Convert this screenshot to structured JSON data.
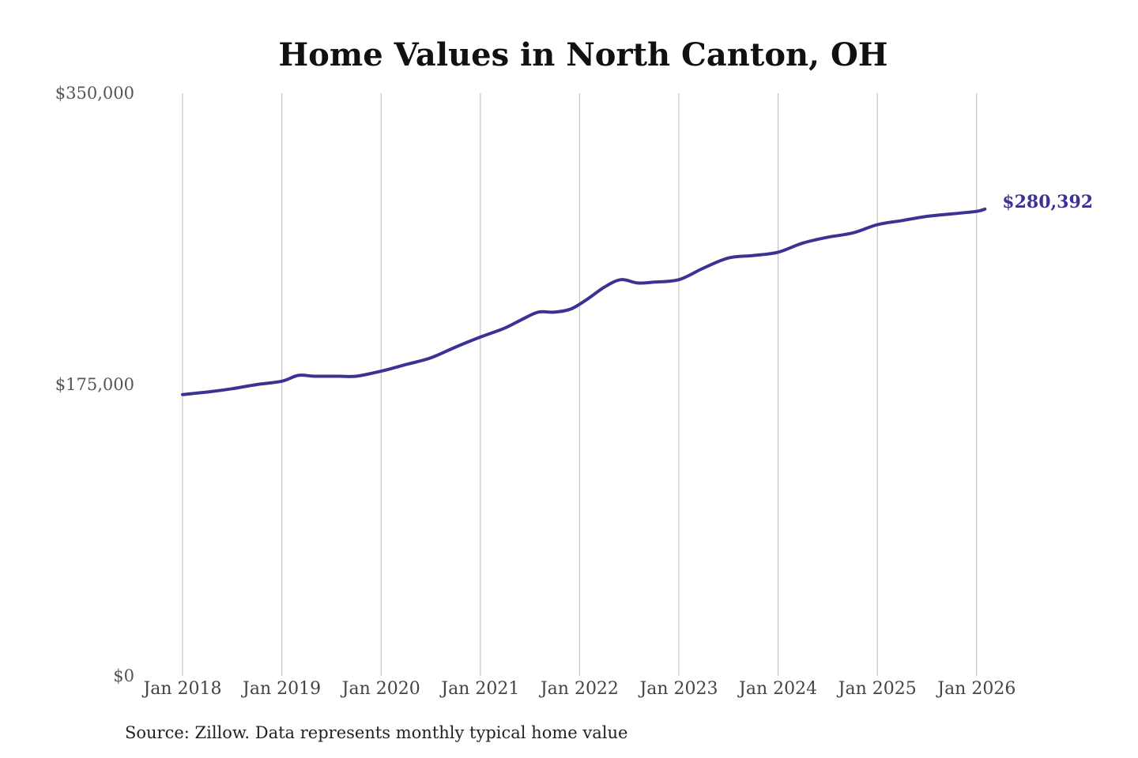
{
  "source": "Source: Zillow. Data represents monthly typical home value",
  "colors": {
    "line": "#3a3394",
    "grid": "#c4c4c4"
  },
  "chart_data": {
    "type": "line",
    "title": "Home Values in North Canton, OH",
    "xlabel": "",
    "ylabel": "",
    "ylim": [
      0,
      350000
    ],
    "y_ticks": [
      0,
      175000,
      350000
    ],
    "y_tick_labels": [
      "$0",
      "$175,000",
      "$350,000"
    ],
    "x_ticks": [
      2018,
      2019,
      2020,
      2021,
      2022,
      2023,
      2024,
      2025,
      2026
    ],
    "x_tick_labels": [
      "Jan 2018",
      "Jan 2019",
      "Jan 2020",
      "Jan 2021",
      "Jan 2022",
      "Jan 2023",
      "Jan 2024",
      "Jan 2025",
      "Jan 2026"
    ],
    "grid": "vertical gridlines at each x tick",
    "legend": "none",
    "end_label": "$280,392",
    "series": [
      {
        "x": [
          "2018-01",
          "2018-04",
          "2018-07",
          "2018-10",
          "2019-01",
          "2019-03",
          "2019-05",
          "2019-08",
          "2019-10",
          "2020-01",
          "2020-04",
          "2020-07",
          "2020-10",
          "2021-01",
          "2021-04",
          "2021-06",
          "2021-08",
          "2021-10",
          "2021-12",
          "2022-02",
          "2022-04",
          "2022-06",
          "2022-08",
          "2022-10",
          "2023-01",
          "2023-04",
          "2023-07",
          "2023-10",
          "2024-01",
          "2024-04",
          "2024-07",
          "2024-10",
          "2025-01",
          "2025-04",
          "2025-07",
          "2025-10",
          "2026-01",
          "2026-02"
        ],
        "values": [
          169000,
          170500,
          172500,
          175000,
          177000,
          180500,
          180000,
          180000,
          180000,
          183000,
          187000,
          191000,
          197500,
          203500,
          209000,
          214000,
          218500,
          218500,
          220500,
          226500,
          233500,
          238000,
          236000,
          236500,
          238000,
          245000,
          251000,
          252500,
          254500,
          260000,
          263500,
          266000,
          271000,
          273500,
          276000,
          277500,
          279000,
          280392
        ]
      }
    ]
  }
}
